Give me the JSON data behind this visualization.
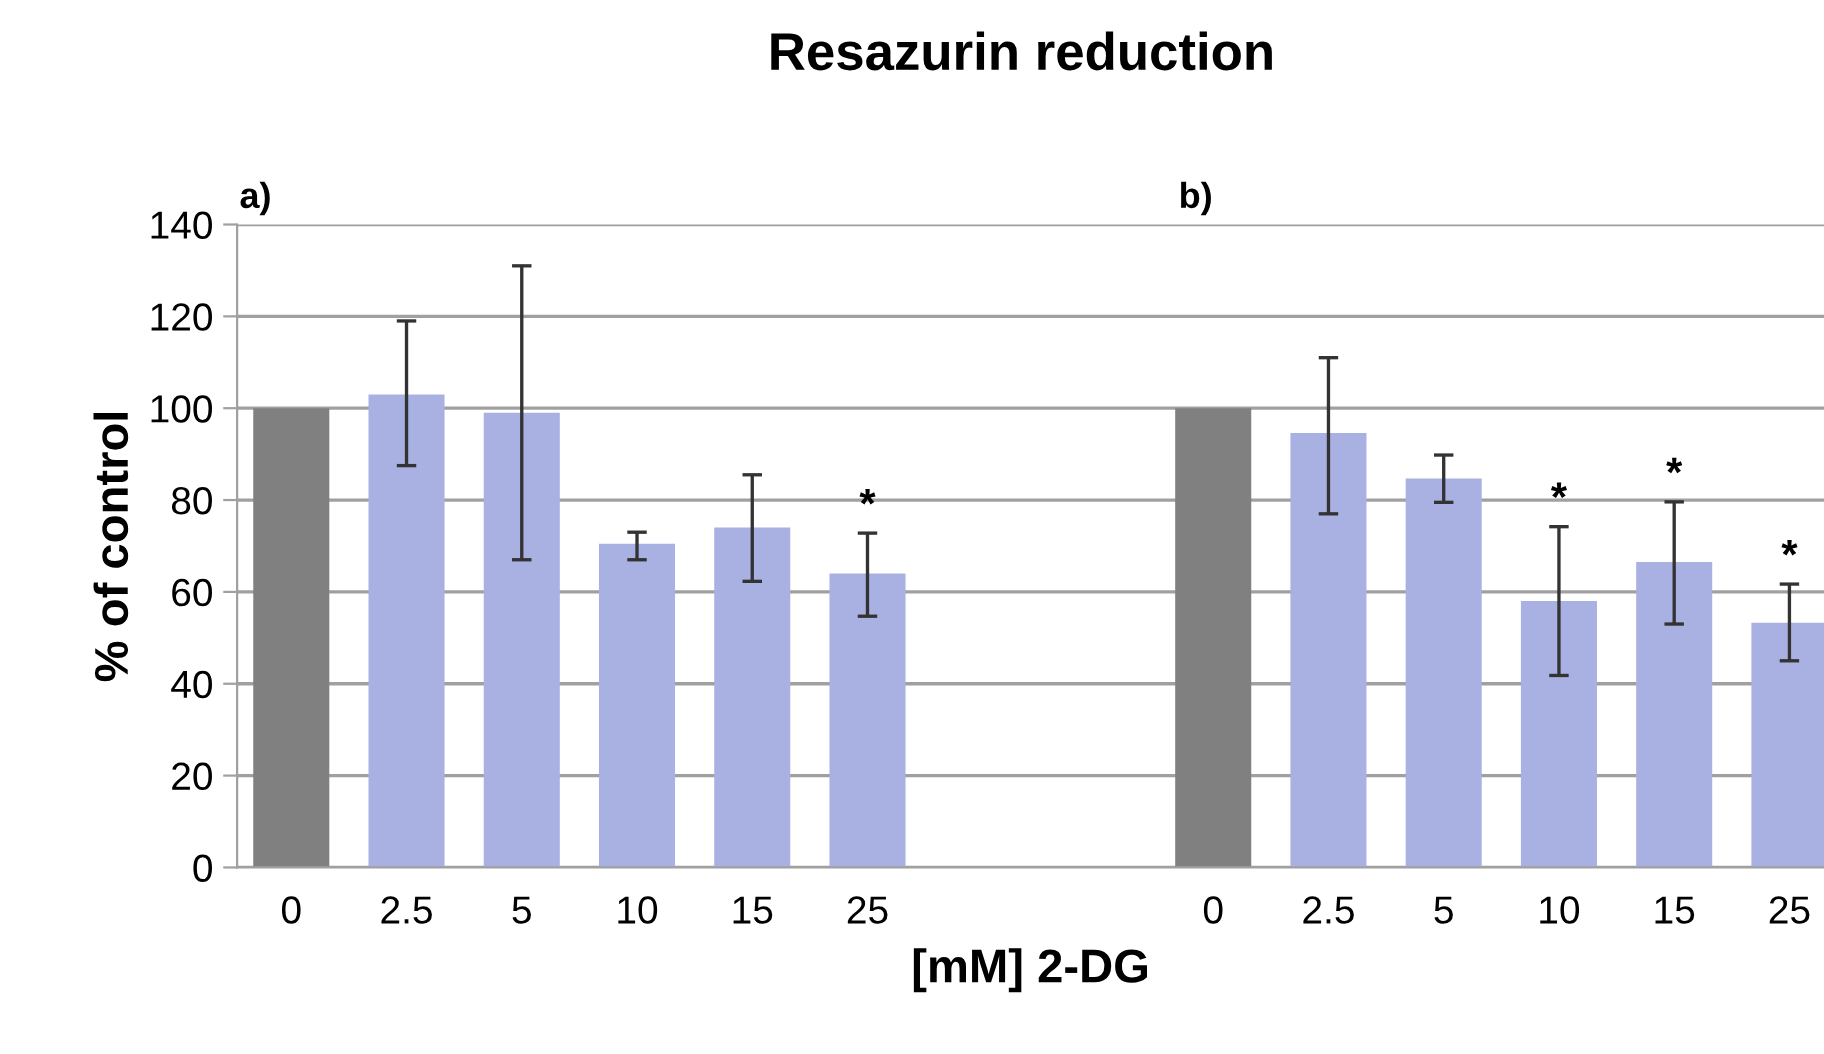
{
  "chart_data": {
    "type": "bar",
    "title": "Resazurin reduction",
    "xlabel": "[mM] 2-DG",
    "ylabel": "% of control",
    "annotations": [
      "a)",
      "b)"
    ],
    "categories": [
      "0",
      "2.5",
      "5",
      "10",
      "15",
      "25",
      null,
      null,
      "0",
      "2.5",
      "5",
      "10",
      "15",
      "25"
    ],
    "values": [
      100,
      103,
      99,
      70.5,
      74,
      64,
      null,
      null,
      100,
      94.6,
      84.7,
      58,
      66.5,
      53.3
    ],
    "colors": [
      "#808080",
      "#a9b1e2",
      "#a9b1e2",
      "#a9b1e2",
      "#a9b1e2",
      "#a9b1e2",
      null,
      null,
      "#808080",
      "#a9b1e2",
      "#a9b1e2",
      "#a9b1e2",
      "#a9b1e2",
      "#a9b1e2"
    ],
    "errors": [
      null,
      [
        87.5,
        119
      ],
      [
        67,
        131
      ],
      [
        67,
        73
      ],
      [
        62.3,
        85.5
      ],
      [
        54.7,
        72.8
      ],
      null,
      null,
      null,
      [
        77,
        111
      ],
      [
        79.5,
        89.8
      ],
      [
        41.8,
        74.2
      ],
      [
        53,
        79.6
      ],
      [
        45,
        61.7
      ]
    ],
    "value_labels": [
      null,
      null,
      null,
      null,
      null,
      "*",
      null,
      null,
      null,
      null,
      null,
      "*",
      "*",
      "*"
    ],
    "ylim": [
      0,
      140
    ],
    "yticks": [
      0,
      20,
      40,
      60,
      80,
      100,
      120,
      140
    ],
    "grid": "y"
  }
}
